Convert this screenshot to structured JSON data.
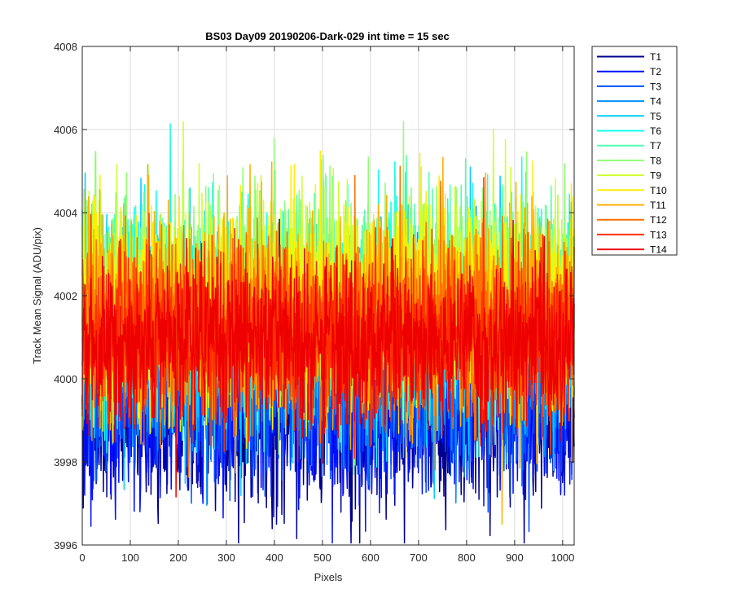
{
  "chart_data": {
    "type": "line",
    "title": "BS03 Day09 20190206-Dark-029 int time = 15 sec",
    "xlabel": "Pixels",
    "ylabel": "Track Mean Signal (ADU/pix)",
    "xlim": [
      0,
      1024
    ],
    "ylim": [
      3996,
      4008
    ],
    "xticks": [
      0,
      100,
      200,
      300,
      400,
      500,
      600,
      700,
      800,
      900,
      1000
    ],
    "yticks": [
      3996,
      3998,
      4000,
      4002,
      4004,
      4006,
      4008
    ],
    "grid": true,
    "legend_location": "outside-top-right",
    "n_points_per_series": 1024,
    "series_generation": "dense noisy traces; values listed below are summary statistics read from the plot (per-series mean level and spread around it)",
    "series": [
      {
        "name": "T1",
        "color": "#00008f",
        "mean": 3999.1,
        "spread": 1.3
      },
      {
        "name": "T2",
        "color": "#0010ff",
        "mean": 3999.3,
        "spread": 1.3
      },
      {
        "name": "T3",
        "color": "#0050ff",
        "mean": 3999.9,
        "spread": 1.4
      },
      {
        "name": "T4",
        "color": "#0090ff",
        "mean": 4000.5,
        "spread": 1.4
      },
      {
        "name": "T5",
        "color": "#00cfff",
        "mean": 4001.3,
        "spread": 1.5
      },
      {
        "name": "T6",
        "color": "#10ffef",
        "mean": 4001.8,
        "spread": 1.5
      },
      {
        "name": "T7",
        "color": "#50ffaf",
        "mean": 4002.0,
        "spread": 1.5
      },
      {
        "name": "T8",
        "color": "#8fff70",
        "mean": 4002.1,
        "spread": 1.5
      },
      {
        "name": "T9",
        "color": "#cfff30",
        "mean": 4001.9,
        "spread": 1.5
      },
      {
        "name": "T10",
        "color": "#ffef00",
        "mean": 4001.7,
        "spread": 1.5
      },
      {
        "name": "T11",
        "color": "#ffaf00",
        "mean": 4001.5,
        "spread": 1.5
      },
      {
        "name": "T12",
        "color": "#ff7000",
        "mean": 4001.2,
        "spread": 1.4
      },
      {
        "name": "T13",
        "color": "#ff3000",
        "mean": 4001.0,
        "spread": 1.3
      },
      {
        "name": "T14",
        "color": "#ef0000",
        "mean": 4000.9,
        "spread": 1.2
      }
    ]
  }
}
